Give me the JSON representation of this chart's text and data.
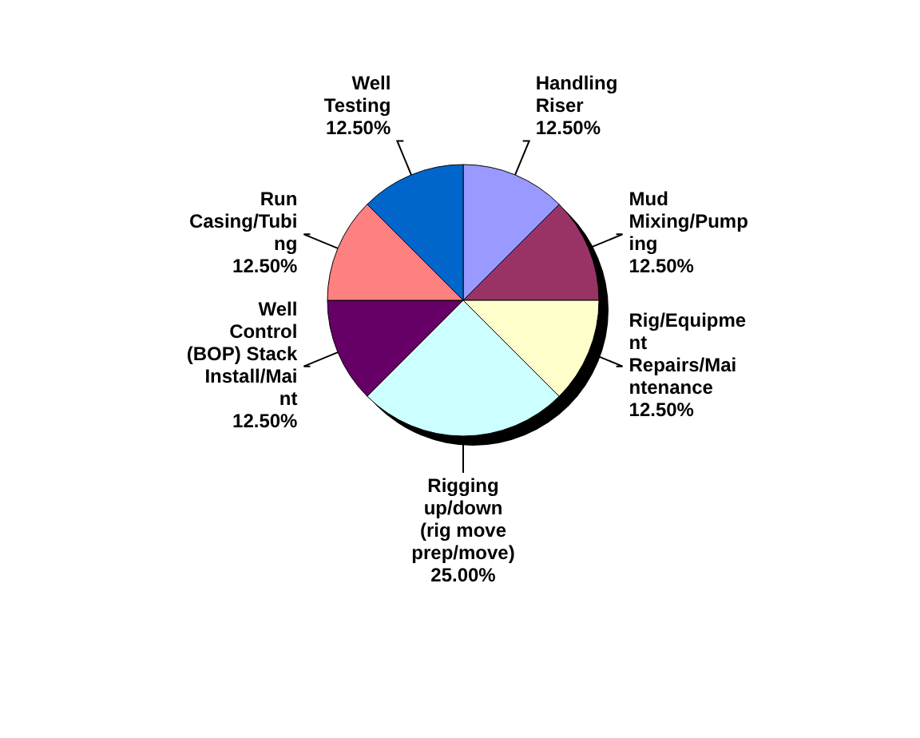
{
  "chart_data": {
    "type": "pie",
    "categories": [
      "Handling Riser",
      "Mud Mixing/Pumping",
      "Rig/Equipment Repairs/Maintenance",
      "Rigging up/down (rig move prep/move)",
      "Well Control (BOP) Stack Install/Maint",
      "Run Casing/Tubing",
      "Well Testing"
    ],
    "values": [
      12.5,
      12.5,
      12.5,
      25,
      12.5,
      12.5,
      12.5
    ],
    "colors": [
      "#9999ff",
      "#993366",
      "#ffffcc",
      "#ccffff",
      "#660066",
      "#ff8080",
      "#0066cc"
    ],
    "value_labels": [
      "12.50%",
      "12.50%",
      "12.50%",
      "25.00%",
      "12.50%",
      "12.50%",
      "12.50%"
    ]
  }
}
